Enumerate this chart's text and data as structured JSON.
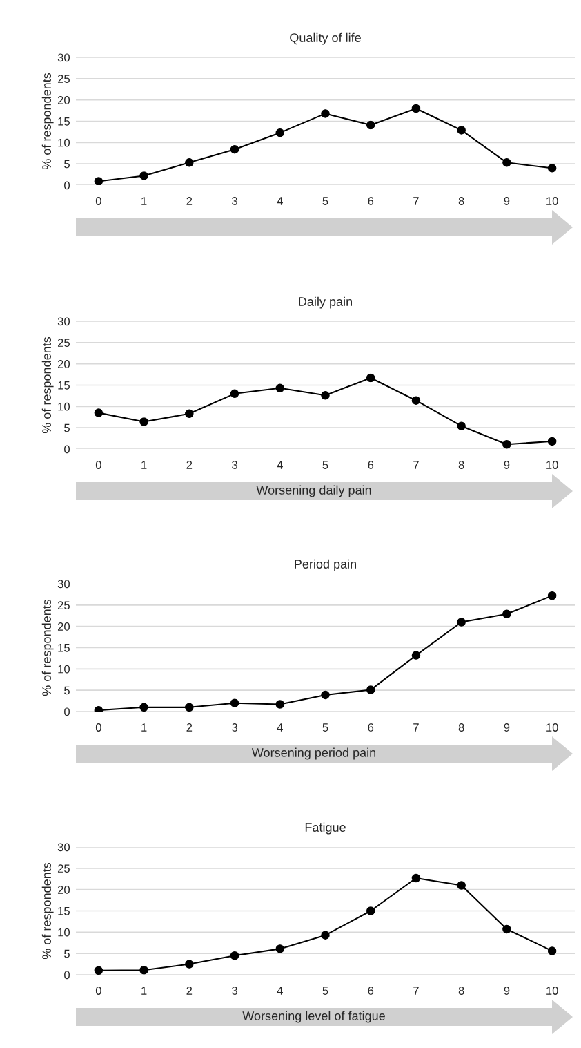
{
  "chart_data": [
    {
      "type": "line",
      "title": "Quality of life",
      "ylabel": "% of respondents",
      "categories": [
        "0",
        "1",
        "2",
        "3",
        "4",
        "5",
        "6",
        "7",
        "8",
        "9",
        "10"
      ],
      "series": [
        {
          "color": "#000000",
          "values": [
            0.9,
            2.2,
            5.3,
            8.4,
            12.3,
            16.8,
            14.1,
            18.0,
            12.9,
            5.3,
            4.0
          ]
        }
      ],
      "ylim": [
        0,
        30
      ],
      "yticks": [
        0,
        5,
        10,
        15,
        20,
        25,
        30
      ],
      "grid": "y",
      "marker": "circle"
    },
    {
      "type": "line",
      "title": "Daily pain",
      "ylabel": "% of respondents",
      "xlabel": "Worsening daily pain",
      "categories": [
        "0",
        "1",
        "2",
        "3",
        "4",
        "5",
        "6",
        "7",
        "8",
        "9",
        "10"
      ],
      "series": [
        {
          "color": "#000000",
          "values": [
            8.5,
            6.4,
            8.3,
            13.0,
            14.3,
            12.6,
            16.7,
            11.4,
            5.4,
            1.1,
            1.8
          ]
        }
      ],
      "ylim": [
        0,
        30
      ],
      "yticks": [
        0,
        5,
        10,
        15,
        20,
        25,
        30
      ],
      "grid": "y",
      "marker": "circle"
    },
    {
      "type": "line",
      "title": "Period pain",
      "ylabel": "% of respondents",
      "xlabel": "Worsening period pain",
      "categories": [
        "0",
        "1",
        "2",
        "3",
        "4",
        "5",
        "6",
        "7",
        "8",
        "9",
        "10"
      ],
      "series": [
        {
          "color": "#000000",
          "values": [
            0.3,
            1.0,
            1.0,
            2.0,
            1.7,
            3.9,
            5.1,
            13.2,
            21.0,
            22.9,
            27.2
          ]
        }
      ],
      "ylim": [
        0,
        30
      ],
      "yticks": [
        0,
        5,
        10,
        15,
        20,
        25,
        30
      ],
      "grid": "y",
      "marker": "circle"
    },
    {
      "type": "line",
      "title": "Fatigue",
      "ylabel": "% of respondents",
      "xlabel": "Worsening level of fatigue",
      "categories": [
        "0",
        "1",
        "2",
        "3",
        "4",
        "5",
        "6",
        "7",
        "8",
        "9",
        "10"
      ],
      "series": [
        {
          "color": "#000000",
          "values": [
            1.0,
            1.1,
            2.5,
            4.5,
            6.1,
            9.3,
            15.0,
            22.7,
            21.0,
            10.7,
            5.6
          ]
        }
      ],
      "ylim": [
        0,
        30
      ],
      "yticks": [
        0,
        5,
        10,
        15,
        20,
        25,
        30
      ],
      "grid": "y",
      "marker": "circle"
    }
  ]
}
